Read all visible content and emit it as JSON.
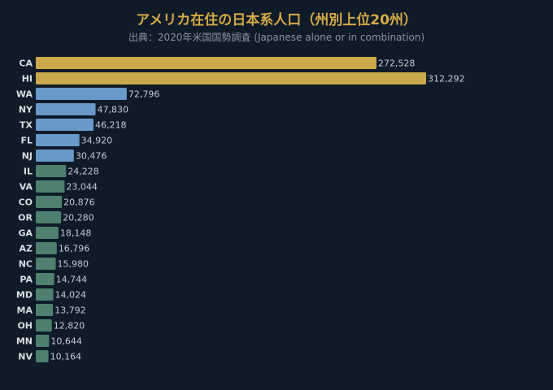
{
  "chart_data": {
    "type": "bar",
    "orientation": "horizontal",
    "title": "アメリカ在住の日本系人口（州別上位20州）",
    "subtitle": "出典：2020年米国国勢調査 (Japanese alone or in combination)",
    "categories": [
      "CA",
      "HI",
      "WA",
      "NY",
      "TX",
      "FL",
      "NJ",
      "IL",
      "VA",
      "CO",
      "OR",
      "GA",
      "AZ",
      "NC",
      "PA",
      "MD",
      "MA",
      "OH",
      "MN",
      "NV"
    ],
    "values": [
      272528,
      312292,
      72796,
      47830,
      46218,
      34920,
      30476,
      24228,
      23044,
      20876,
      20280,
      18148,
      16796,
      15980,
      14744,
      14024,
      13792,
      12820,
      10644,
      10164
    ],
    "value_labels": [
      "272,528",
      "312,292",
      "72,796",
      "47,830",
      "46,218",
      "34,920",
      "30,476",
      "24,228",
      "23,044",
      "20,876",
      "20,280",
      "18,148",
      "16,796",
      "15,980",
      "14,744",
      "14,024",
      "13,792",
      "12,820",
      "10,644",
      "10,164"
    ],
    "xlim": [
      0,
      312292
    ],
    "grid": false,
    "bar_colors": [
      "#cba94a",
      "#cba94a",
      "#6899c8",
      "#6899c8",
      "#6899c8",
      "#6899c8",
      "#6899c8",
      "#4f7f6f",
      "#4f7f6f",
      "#4f7f6f",
      "#4f7f6f",
      "#4f7f6f",
      "#4f7f6f",
      "#4f7f6f",
      "#4f7f6f",
      "#4f7f6f",
      "#4f7f6f",
      "#4f7f6f",
      "#4f7f6f",
      "#4f7f6f"
    ]
  }
}
